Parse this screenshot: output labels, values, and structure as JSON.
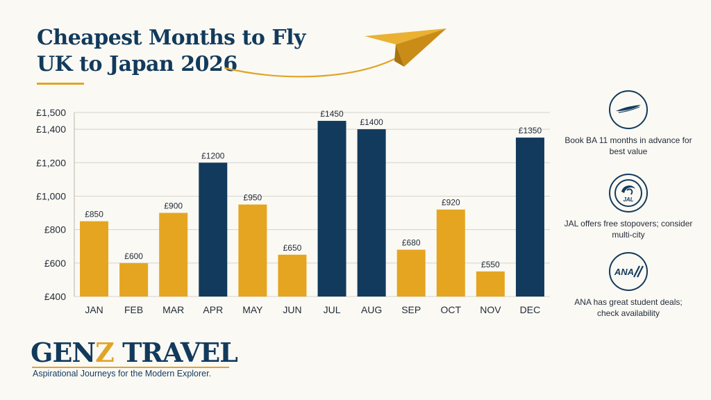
{
  "header": {
    "title_line1": "Cheapest Months to Fly",
    "title_line2": "UK to Japan 2026"
  },
  "chart_data": {
    "type": "bar",
    "categories": [
      "JAN",
      "FEB",
      "MAR",
      "APR",
      "MAY",
      "JUN",
      "JUL",
      "AUG",
      "SEP",
      "OCT",
      "NOV",
      "DEC"
    ],
    "values": [
      850,
      600,
      900,
      1200,
      950,
      650,
      1450,
      1400,
      680,
      920,
      550,
      1350
    ],
    "value_labels": [
      "£850",
      "£600",
      "£900",
      "£1200",
      "£950",
      "£650",
      "£1450",
      "£1400",
      "£680",
      "£920",
      "£550",
      "£1350"
    ],
    "highlight": [
      false,
      false,
      false,
      true,
      false,
      false,
      true,
      true,
      false,
      false,
      false,
      true
    ],
    "yticks": [
      400,
      600,
      800,
      1000,
      1200,
      1400,
      1500
    ],
    "ytick_labels": [
      "£400",
      "£600",
      "£800",
      "£1,000",
      "£1,200",
      "£1,400",
      "£1,500"
    ],
    "ylim": [
      400,
      1500
    ],
    "grid": true,
    "title": "",
    "xlabel": "",
    "ylabel": "",
    "colors": {
      "standard": "#e5a521",
      "highlight": "#123a5c",
      "grid": "#d6d3cc",
      "text": "#1f2a36"
    }
  },
  "sidebar": {
    "items": [
      {
        "icon": "british-airways-icon",
        "text": "Book BA 11 months in advance for best value"
      },
      {
        "icon": "jal-icon",
        "text": "JAL offers free stopovers; consider multi-city",
        "logo_text": "JAL"
      },
      {
        "icon": "ana-icon",
        "text": "ANA has great student deals; check availability",
        "logo_text": "ANA"
      }
    ]
  },
  "footer": {
    "brand_part1": "GEN",
    "brand_accent": "Z",
    "brand_part2": " TRAVEL",
    "tagline": "Aspirational Journeys for the Modern Explorer."
  },
  "colors": {
    "navy": "#123a5c",
    "gold": "#e0a526",
    "background": "#fbf9f4"
  }
}
